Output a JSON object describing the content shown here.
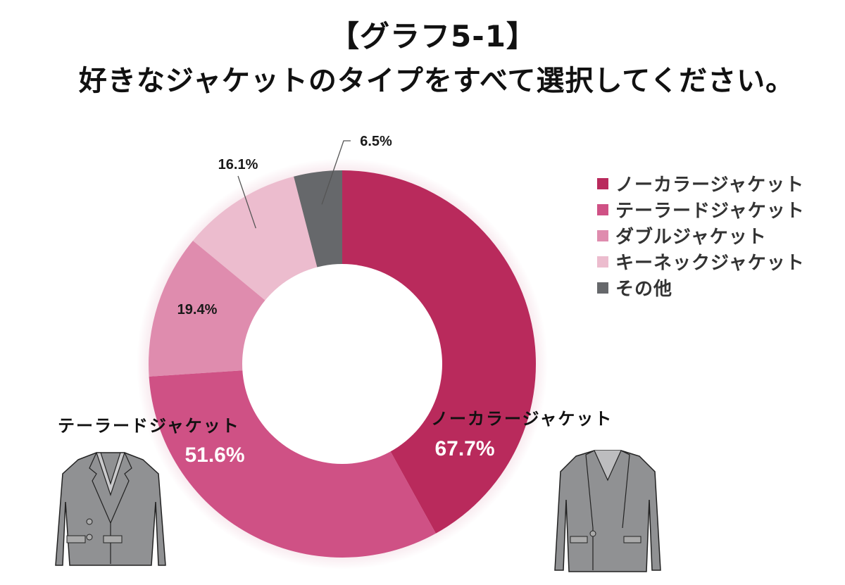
{
  "header": {
    "title": "【グラフ5-1】",
    "subtitle": "好きなジャケットのタイプをすべて選択してください。"
  },
  "chart_data": {
    "type": "pie",
    "variant": "donut",
    "categories": [
      "ノーカラージャケット",
      "テーラードジャケット",
      "ダブルジャケット",
      "キーネックジャケット",
      "その他"
    ],
    "values": [
      67.7,
      51.6,
      19.4,
      16.1,
      6.5
    ],
    "value_labels": [
      "67.7%",
      "51.6%",
      "19.4%",
      "16.1%",
      "6.5%"
    ],
    "colors": [
      "#b92a5c",
      "#cf5185",
      "#df8cae",
      "#ecbcce",
      "#66686b"
    ],
    "legend_position": "right"
  },
  "callouts": {
    "no_collar": "ノーカラージャケット",
    "tailored": "テーラードジャケット"
  },
  "illustrations": {
    "left": "tailored-jacket",
    "right": "no-collar-jacket"
  }
}
